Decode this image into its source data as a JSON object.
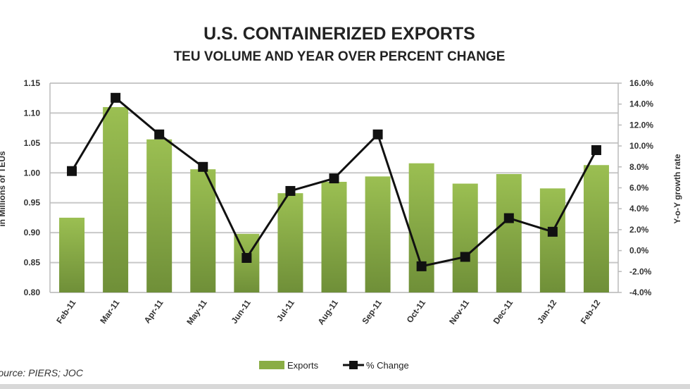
{
  "chart_data": {
    "type": "bar",
    "title": "U.S. CONTAINERIZED EXPORTS",
    "subtitle": "TEU VOLUME AND YEAR OVER PERCENT CHANGE",
    "categories": [
      "Feb-11",
      "Mar-11",
      "Apr-11",
      "May-11",
      "Jun-11",
      "Jul-11",
      "Aug-11",
      "Sep-11",
      "Oct-11",
      "Nov-11",
      "Dec-11",
      "Jan-12",
      "Feb-12"
    ],
    "series": [
      {
        "name": "Exports",
        "type": "bar",
        "axis": "left",
        "color": "#8aad45",
        "values": [
          0.925,
          1.11,
          1.056,
          1.006,
          0.898,
          0.966,
          0.985,
          0.994,
          1.016,
          0.982,
          0.998,
          0.974,
          1.013
        ]
      },
      {
        "name": "% Change",
        "type": "line",
        "axis": "right",
        "color": "#111111",
        "values": [
          7.6,
          14.6,
          11.1,
          8.0,
          -0.7,
          5.7,
          6.9,
          11.1,
          -1.5,
          -0.6,
          3.1,
          1.8,
          9.6
        ]
      }
    ],
    "ylabel": "in Millions of TEUs",
    "y2label": "Y-o-Y growth rate",
    "ylim": [
      0.8,
      1.15
    ],
    "y2lim": [
      -4,
      16
    ],
    "yticks": [
      "0.80",
      "0.85",
      "0.90",
      "0.95",
      "1.00",
      "1.05",
      "1.10",
      "1.15"
    ],
    "y2ticks": [
      "-4.0%",
      "-2.0%",
      "0.0%",
      "2.0%",
      "4.0%",
      "6.0%",
      "8.0%",
      "10.0%",
      "12.0%",
      "14.0%",
      "16.0%"
    ],
    "grid": true,
    "legend": "bottom-center",
    "source": "Source: PIERS; JOC"
  }
}
